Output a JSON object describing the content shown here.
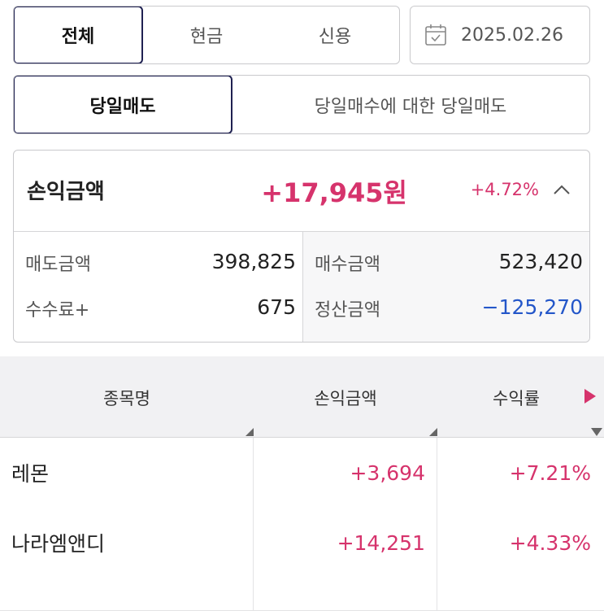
{
  "account_type_tabs": [
    {
      "label": "전체",
      "active": true
    },
    {
      "label": "현금",
      "active": false
    },
    {
      "label": "신용",
      "active": false
    }
  ],
  "date": {
    "value": "2025.02.26",
    "icon": "calendar-icon"
  },
  "trade_type_tabs": [
    {
      "label": "당일매도",
      "active": true
    },
    {
      "label": "당일매수에 대한 당일매도",
      "active": false
    }
  ],
  "summary": {
    "pl_label": "손익금액",
    "pl_amount": "+17,945원",
    "pl_rate": "+4.72%",
    "sell_label": "매도금액",
    "sell_value": "398,825",
    "buy_label": "매수금액",
    "buy_value": "523,420",
    "fee_label": "수수료+",
    "fee_value": "675",
    "settle_label": "정산금액",
    "settle_value": "−125,270"
  },
  "table": {
    "headers": {
      "name": "종목명",
      "pl": "손익금액",
      "rate": "수익률"
    },
    "rows": [
      {
        "name": "레몬",
        "pl": "+3,694",
        "rate": "+7.21%"
      },
      {
        "name": "나라엠앤디",
        "pl": "+14,251",
        "rate": "+4.33%"
      }
    ]
  },
  "colors": {
    "positive": "#d6336c",
    "negative": "#2356c9",
    "active_border": "#1f2151"
  }
}
